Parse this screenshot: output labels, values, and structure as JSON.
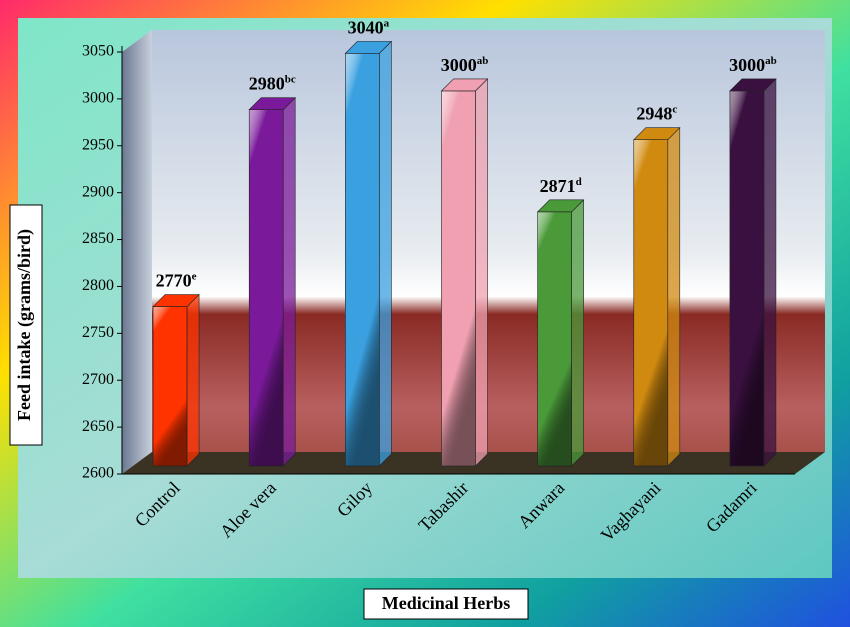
{
  "chart_data": {
    "type": "bar",
    "x_label": "Medicinal Herbs",
    "y_label": "Feed intake (grams/bird)",
    "categories": [
      "Control",
      "Aloe vera",
      "Giloy",
      "Tabashir",
      "Anwara",
      "Vaghayani",
      "Gadamri"
    ],
    "values": [
      2770,
      2980,
      3040,
      3000,
      2871,
      2948,
      3000
    ],
    "significance_letters": [
      "e",
      "bc",
      "a",
      "ab",
      "d",
      "c",
      "ab"
    ],
    "colors": [
      "#ff3300",
      "#7a1a9a",
      "#3aa0e0",
      "#f0a0b0",
      "#4a9a3a",
      "#d08a10",
      "#3a1040"
    ],
    "ylim": [
      2600,
      3050
    ],
    "yticks": [
      2600,
      2650,
      2700,
      2750,
      2800,
      2850,
      2900,
      2950,
      3000,
      3050
    ]
  }
}
